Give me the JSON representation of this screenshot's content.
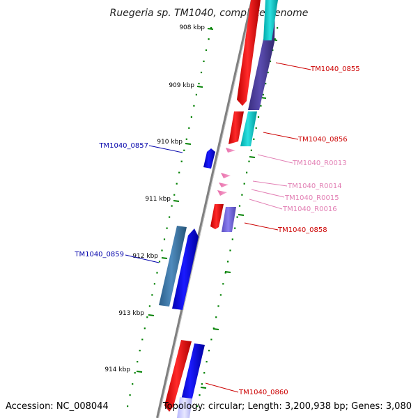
{
  "title": "Ruegeria sp. TM1040, complete genome",
  "footer": {
    "accession": "Accession: NC_008044",
    "topology": "Topology: circular; Length: 3,200,938 bp; Genes: 3,080"
  },
  "colors": {
    "backbone": "#808080",
    "tick": "#008000",
    "label_red": "#cc0000",
    "label_blue": "#0000aa",
    "label_pink": "#e27fb4"
  },
  "tick_labels": [
    "908 kbp",
    "909 kbp",
    "910 kbp",
    "911 kbp",
    "912 kbp",
    "913 kbp",
    "914 kbp"
  ],
  "gene_labels": [
    {
      "name": "TM1040_0855",
      "color": "#cc0000"
    },
    {
      "name": "TM1040_0856",
      "color": "#cc0000"
    },
    {
      "name": "TM1040_R0013",
      "color": "#e27fb4"
    },
    {
      "name": "TM1040_R0014",
      "color": "#e27fb4"
    },
    {
      "name": "TM1040_R0015",
      "color": "#e27fb4"
    },
    {
      "name": "TM1040_R0016",
      "color": "#e27fb4"
    },
    {
      "name": "TM1040_0858",
      "color": "#cc0000"
    },
    {
      "name": "TM1040_0857",
      "color": "#0000aa"
    },
    {
      "name": "TM1040_0859",
      "color": "#0000aa"
    },
    {
      "name": "TM1040_0860",
      "color": "#cc0000"
    }
  ]
}
